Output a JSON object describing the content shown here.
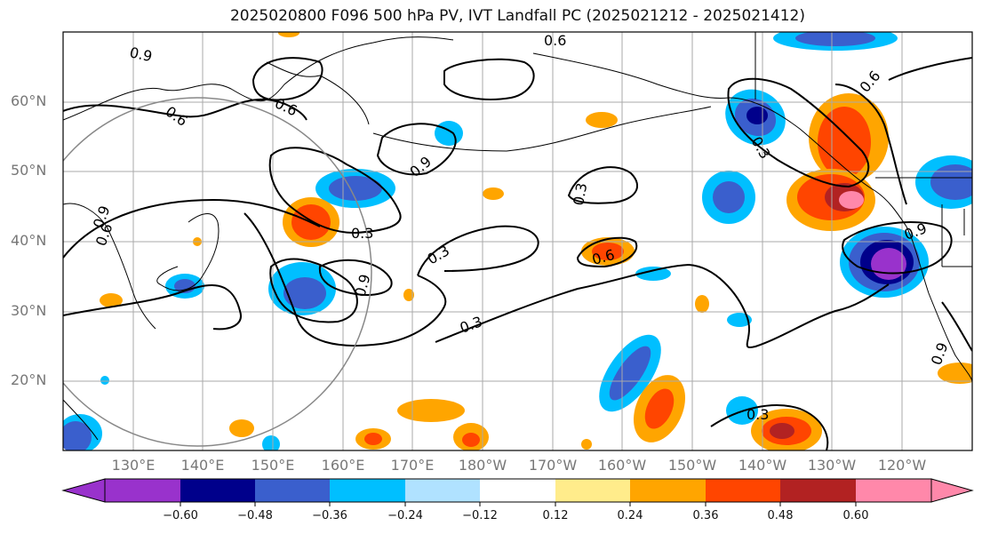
{
  "title": "2025020800 F096 500 hPa PV, IVT Landfall PC (2025021212 - 2025021412)",
  "map": {
    "lat_labels": [
      "60°N",
      "50°N",
      "40°N",
      "30°N",
      "20°N"
    ],
    "lon_labels": [
      "130°E",
      "140°E",
      "150°E",
      "160°E",
      "170°E",
      "180°W",
      "170°W",
      "160°W",
      "150°W",
      "140°W",
      "130°W",
      "120°W"
    ],
    "contour_labels": [
      "0.9",
      "0.6",
      "0.6",
      "0.9",
      "0.6",
      "0.3",
      "0.3",
      "0.3",
      "0.6",
      "0.9",
      "0.3",
      "0.9",
      "0.6",
      "0.9",
      "0.3",
      "0.3",
      "0.6",
      "0.9"
    ],
    "colors": {
      "ocean": "#ffffff",
      "grid": "#aaaaaa",
      "contour": "#000000",
      "circle": "#888888"
    }
  },
  "colorbar": {
    "ticks": [
      "−0.60",
      "−0.48",
      "−0.36",
      "−0.24",
      "−0.12",
      "0.12",
      "0.24",
      "0.36",
      "0.48",
      "0.60"
    ],
    "colors": [
      "#9932cc",
      "#00008b",
      "#3a5fcd",
      "#00bfff",
      "#b0e2ff",
      "#ffffff",
      "#ffec8b",
      "#ffa500",
      "#ff4500",
      "#b22222",
      "#ff88aa"
    ]
  }
}
